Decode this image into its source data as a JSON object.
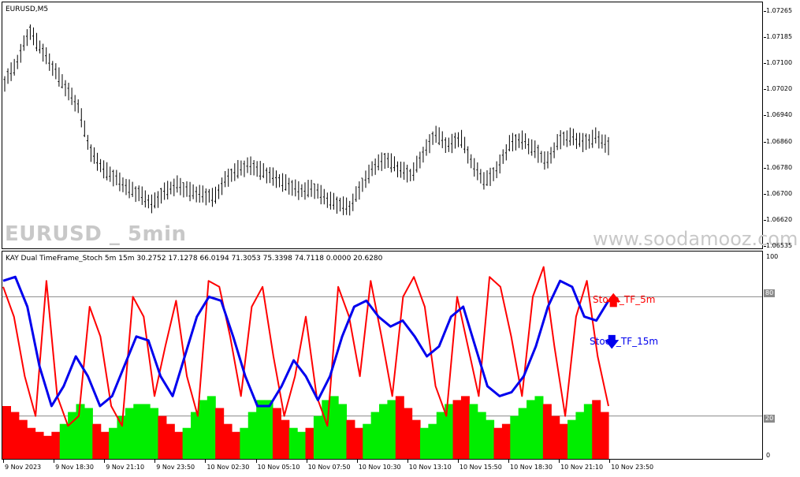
{
  "main_chart": {
    "title": "EURUSD,M5",
    "watermark_symbol": "EURUSD _ 5min",
    "watermark_site": "www.soodamooz.com",
    "price_labels": [
      "1.07265",
      "1.07185",
      "1.07100",
      "1.07020",
      "1.06940",
      "1.06860",
      "1.06780",
      "1.06700",
      "1.06620",
      "1.06535"
    ]
  },
  "indicator": {
    "title": "KAY Dual TimeFrame_Stoch 5m 15m  30.2752 17.1278 66.0194 71.3053 75.3398 74.7118 0.0000 20.6280",
    "scale_labels": [
      "100",
      "80",
      "20",
      "0"
    ],
    "level_high": "80",
    "level_low": "20",
    "signal_5m_label": "Stoch_TF_5m",
    "signal_15m_label": "Stoch_TF_15m"
  },
  "time_labels": [
    "9 Nov 2023",
    "9 Nov 18:30",
    "9 Nov 21:10",
    "9 Nov 23:50",
    "10 Nov 02:30",
    "10 Nov 05:10",
    "10 Nov 07:50",
    "10 Nov 10:30",
    "10 Nov 13:10",
    "10 Nov 15:50",
    "10 Nov 18:30",
    "10 Nov 21:10",
    "10 Nov 23:50"
  ],
  "colors": {
    "stoch_5m": "#ff0000",
    "stoch_15m": "#0000ee",
    "hist_up": "#00ee00",
    "hist_down": "#ff0000",
    "candles": "#000000"
  },
  "chart_data": [
    {
      "type": "line",
      "series": [
        {
          "name": "EURUSD,M5",
          "values": [
            1.0702,
            1.0708,
            1.0718,
            1.0712,
            1.0706,
            1.07,
            1.0694,
            1.068,
            1.0675,
            1.0672,
            1.0669,
            1.0667,
            1.0664,
            1.0668,
            1.067,
            1.0668,
            1.0667,
            1.0666,
            1.0672,
            1.0675,
            1.0676,
            1.0674,
            1.0672,
            1.067,
            1.0668,
            1.0669,
            1.0666,
            1.0664,
            1.0663,
            1.067,
            1.0676,
            1.0678,
            1.0675,
            1.0673,
            1.068,
            1.0686,
            1.0682,
            1.0685,
            1.0676,
            1.0671,
            1.0675,
            1.0683,
            1.0684,
            1.0681,
            1.0677,
            1.0684,
            1.0685,
            1.0683,
            1.0685,
            1.0682
          ]
        }
      ],
      "ylim": [
        1.06535,
        1.07265
      ]
    },
    {
      "type": "line",
      "series": [
        {
          "name": "Stoch_TF_5m",
          "values": [
            85,
            70,
            40,
            20,
            88,
            30,
            15,
            20,
            75,
            60,
            25,
            15,
            80,
            70,
            30,
            55,
            78,
            40,
            20,
            88,
            85,
            60,
            30,
            75,
            85,
            50,
            20,
            40,
            70,
            30,
            15,
            85,
            70,
            40,
            88,
            60,
            30,
            80,
            90,
            75,
            35,
            20,
            80,
            55,
            30,
            90,
            85,
            60,
            30,
            80,
            95,
            55,
            20,
            70,
            88,
            50,
            25
          ]
        },
        {
          "name": "Stoch_TF_15m",
          "values": [
            88,
            90,
            75,
            45,
            25,
            35,
            50,
            40,
            25,
            30,
            45,
            60,
            58,
            40,
            30,
            50,
            70,
            80,
            78,
            60,
            40,
            25,
            25,
            35,
            48,
            40,
            28,
            40,
            60,
            75,
            78,
            70,
            65,
            68,
            60,
            50,
            55,
            70,
            75,
            55,
            35,
            30,
            32,
            40,
            55,
            75,
            88,
            85,
            70,
            68,
            78
          ]
        }
      ],
      "ylim": [
        0,
        100
      ]
    },
    {
      "type": "bar",
      "series": [
        {
          "name": "15m histogram",
          "values": [
            25,
            22,
            18,
            14,
            12,
            10,
            12,
            16,
            22,
            26,
            24,
            16,
            12,
            14,
            20,
            24,
            26,
            26,
            24,
            20,
            16,
            12,
            14,
            22,
            28,
            30,
            24,
            16,
            12,
            14,
            22,
            28,
            28,
            24,
            18,
            14,
            12,
            14,
            20,
            28,
            30,
            26,
            18,
            14,
            16,
            22,
            26,
            28,
            30,
            24,
            18,
            14,
            16,
            22,
            26,
            28,
            30,
            26,
            22,
            18,
            14,
            16,
            20,
            24,
            28,
            30,
            26,
            20,
            16,
            18,
            22,
            26,
            28,
            22
          ]
        },
        {
          "name": "trend",
          "values": [
            0,
            0,
            0,
            0,
            0,
            0,
            0,
            1,
            1,
            1,
            1,
            0,
            0,
            1,
            1,
            1,
            1,
            1,
            1,
            0,
            0,
            0,
            1,
            1,
            1,
            1,
            0,
            0,
            0,
            1,
            1,
            1,
            1,
            0,
            0,
            1,
            1,
            0,
            1,
            1,
            1,
            1,
            0,
            0,
            1,
            1,
            1,
            1,
            0,
            0,
            0,
            1,
            1,
            1,
            1,
            0,
            0,
            1,
            1,
            1,
            0,
            0,
            1,
            1,
            1,
            1,
            0,
            0,
            0,
            1,
            1,
            1,
            0,
            0
          ]
        }
      ],
      "ylim": [
        0,
        100
      ]
    }
  ]
}
